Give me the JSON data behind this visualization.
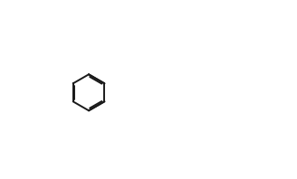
{
  "bg_color": "#ffffff",
  "lc": "#1a1a1a",
  "lw": 1.4,
  "text_color": "#1a1a1a",
  "font_size": 7.5
}
